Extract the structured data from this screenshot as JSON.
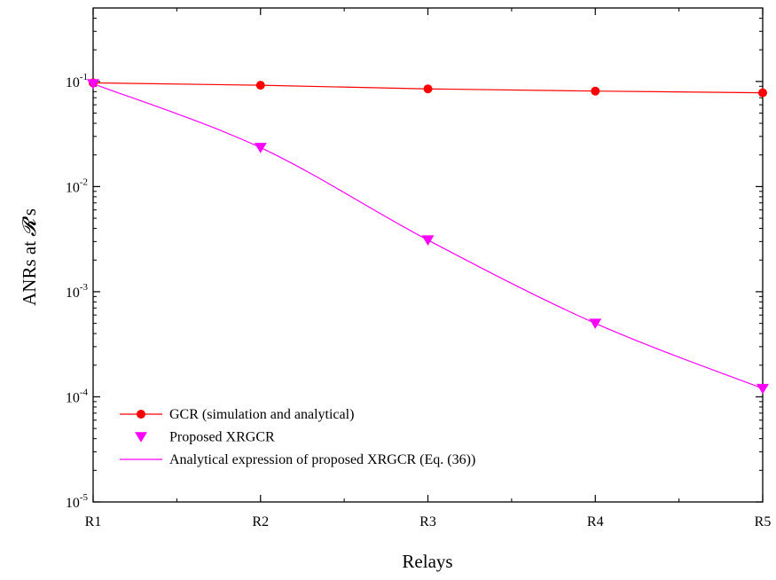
{
  "chart_data": {
    "type": "line",
    "xlabel": "Relays",
    "ylabel": "ANRs at ",
    "ylabel_symbol": "𝓡",
    "ylabel_suffix": "'s",
    "categories": [
      "R1",
      "R2",
      "R3",
      "R4",
      "R5"
    ],
    "y_scale": "log",
    "ylim": [
      1e-05,
      0.5
    ],
    "y_ticks": [
      {
        "value": 0.1,
        "base": "10",
        "exp": "-1"
      },
      {
        "value": 0.01,
        "base": "10",
        "exp": "-2"
      },
      {
        "value": 0.001,
        "base": "10",
        "exp": "-3"
      },
      {
        "value": 0.0001,
        "base": "10",
        "exp": "-4"
      },
      {
        "value": 1e-05,
        "base": "10",
        "exp": "-5"
      }
    ],
    "grid": false,
    "legend_position": "bottom-left",
    "series": [
      {
        "name": "GCR (simulation and analytical)",
        "color": "#ff0000",
        "marker": "circle",
        "line": true,
        "values": [
          0.097,
          0.092,
          0.085,
          0.081,
          0.078
        ]
      },
      {
        "name": "Proposed XRGCR",
        "color": "#ff00ff",
        "marker": "triangle-down",
        "line": false,
        "values": [
          0.095,
          0.0235,
          0.0031,
          0.0005,
          0.00012
        ]
      },
      {
        "name": "Analytical expression of proposed XRGCR (Eq. (36))",
        "color": "#ff00ff",
        "marker": "none",
        "line": true,
        "smooth": true,
        "values": [
          0.095,
          0.0235,
          0.0031,
          0.0005,
          0.00012
        ]
      }
    ]
  }
}
